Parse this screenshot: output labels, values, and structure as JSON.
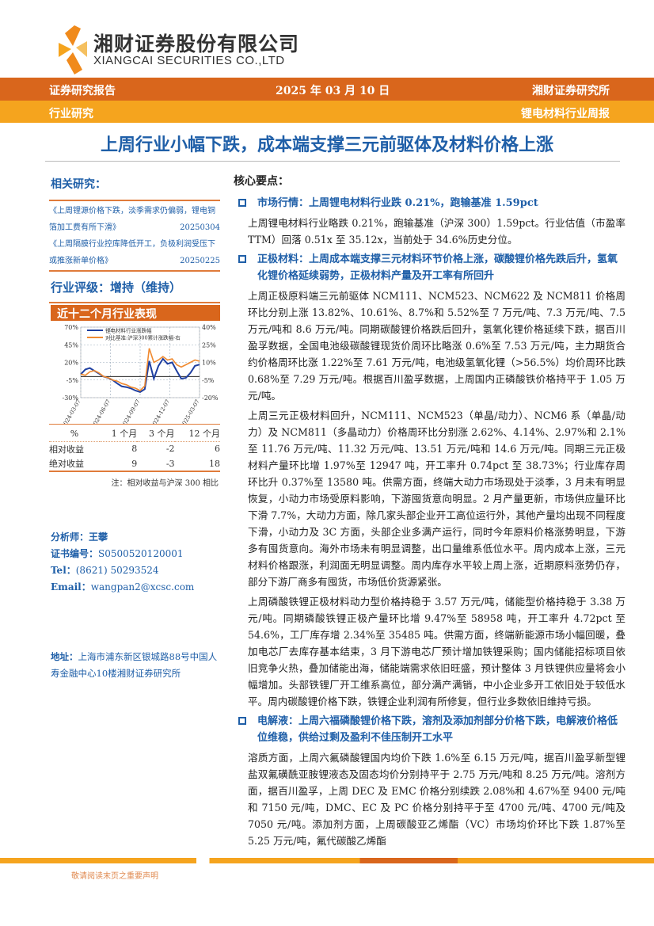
{
  "header": {
    "company_cn": "湘财证券股份有限公司",
    "company_en": "XIANGCAI SECURITIES CO.,LTD",
    "report_type": "证券研究报告",
    "date": "2025 年 03 月 10 日",
    "institute": "湘财证券研究所",
    "category": "行业研究",
    "series": "锂电材料行业周报"
  },
  "title": "上周行业小幅下跌，成本端支撑三元前驱体及材料价格上涨",
  "sidebar": {
    "related_title": "相关研究：",
    "related": [
      {
        "text": "《上周锂源价格下跌，淡季需求仍偏弱，锂电铜箔加工费有所下滑》",
        "date": "20250304"
      },
      {
        "text": "《上周隔膜行业控库降低开工，负极利润受压下或推涨新单价格》",
        "date": "20250225"
      }
    ],
    "rating": "行业评级：增持（维持）",
    "chart_title": "近十二个月行业表现",
    "perf_table": {
      "headers": [
        "%",
        "1 个月",
        "3 个月",
        "12 个月"
      ],
      "rows": [
        [
          "相对收益",
          "8",
          "-2",
          "6"
        ],
        [
          "绝对收益",
          "9",
          "-3",
          "18"
        ]
      ],
      "note": "注：相对收益与沪深 300 相比"
    },
    "analyst": {
      "name_label": "分析师：",
      "name": "王攀",
      "cert_label": "证书编号：",
      "cert": "S0500520120001",
      "tel_label": "Tel：",
      "tel": "(8621) 50293524",
      "email_label": "Email：",
      "email": "wangpan2@xcsc.com"
    },
    "address_label": "地址：",
    "address": "上海市浦东新区银城路88号中国人寿金融中心10楼湘财证券研究所"
  },
  "chart_data": {
    "type": "line",
    "title": "近十二个月行业表现",
    "x_ticks": [
      "2024-03-07",
      "2024-06-07",
      "2024-09-07",
      "2024-12-07",
      "2025-03-07"
    ],
    "left_ticks": [
      "70%",
      "45%",
      "20%",
      "-5%",
      "-30%"
    ],
    "ylim_left": [
      -30,
      70
    ],
    "right_ticks": [
      "40%",
      "25%",
      "10%",
      "-5%",
      "-20%"
    ],
    "ylim_right": [
      -20,
      40
    ],
    "grid": true,
    "legend": "top",
    "x": [
      "2024-03-07",
      "2024-03-21",
      "2024-04-04",
      "2024-04-18",
      "2024-05-02",
      "2024-05-16",
      "2024-05-30",
      "2024-06-13",
      "2024-06-27",
      "2024-07-11",
      "2024-07-25",
      "2024-08-08",
      "2024-08-22",
      "2024-09-05",
      "2024-09-19",
      "2024-10-03",
      "2024-10-17",
      "2024-10-31",
      "2024-11-14",
      "2024-11-28",
      "2024-12-12",
      "2024-12-26",
      "2025-01-09",
      "2025-01-23",
      "2025-02-06",
      "2025-02-20",
      "2025-03-06"
    ],
    "series": [
      {
        "name": "锂电材料行业涨跌幅",
        "axis": "left",
        "color": "#1f3fa0",
        "values": [
          3,
          10,
          12,
          8,
          4,
          0,
          -2,
          -5,
          -10,
          -14,
          -15,
          -17,
          -20,
          -22,
          -18,
          22,
          -3,
          15,
          25,
          18,
          20,
          8,
          -3,
          -2,
          5,
          15,
          17
        ]
      },
      {
        "name": "对比基准:沪深300累计涨跌幅-右",
        "axis": "right",
        "color": "#f08a30",
        "values": [
          0,
          -1,
          2,
          3,
          1,
          -2,
          -3,
          -5,
          -6,
          -8,
          -9,
          -11,
          -12,
          -14,
          -10,
          22,
          10,
          12,
          15,
          12,
          13,
          8,
          6,
          8,
          10,
          12,
          11
        ]
      }
    ]
  },
  "main": {
    "core_title": "核心要点：",
    "sections": [
      {
        "heading": "市场行情：上周锂电材料行业跌 0.21%，跑输基准 1.59pct",
        "paras": [
          "上周锂电材料行业略跌 0.21%，跑输基准（沪深 300）1.59pct。行业估值（市盈率 TTM）回落 0.51x 至 35.12x，当前处于 34.6%历史分位。"
        ]
      },
      {
        "heading": "正极材料：上周成本端支撑三元材料环节价格上涨，碳酸锂价格先跌后升，氢氧化锂价格延续弱势，正极材料产量及开工率有所回升",
        "paras": [
          "上周正极原料端三元前驱体 NCM111、NCM523、NCM622 及 NCM811 价格周环比分别上涨 13.82%、10.61%、8.7%和 5.52%至 7 万元/吨、7.3 万元/吨、7.5 万元/吨和 8.6 万元/吨。同期碳酸锂价格跌后回升，氢氧化锂价格延续下跌，据百川盈孚数据，全国电池级碳酸锂现货价周环比略涨 0.6%至 7.53 万元/吨，主力期货合约价格周环比涨 1.22%至 7.61 万元/吨，电池级氢氧化锂（>56.5%）均价周环比跌 0.68%至 7.29 万元/吨。根据百川盈孚数据，上周国内正磷酸铁价格持平于 1.05 万元/吨。",
          "上周三元正极材料回升，NCM111、NCM523（单晶/动力）、NCM6 系（单晶/动力）及 NCM811（多晶动力）价格周环比分别涨 2.62%、4.14%、2.97%和 2.1%至 11.76 万元/吨、11.32 万元/吨、13.51 万元/吨和 14.6 万元/吨。同期三元正极材料产量环比增 1.97%至 12947 吨，开工率升 0.74pct 至 38.73%；行业库存周环比升 0.37%至 13580 吨。供需方面，终端大动力市场现处于淡季，3 月未有明显恢复，小动力市场受原料影响，下游囤货意向明显。2 月产量更新，市场供应量环比下滑 7.7%，大动力方面，除几家头部企业开工高位运行外，其他产量均出现不同程度下滑，小动力及 3C 方面，头部企业多满产运行，同时今年原料价格涨势明显，下游多有囤货意向。海外市场未有明显调整，出口量维系低位水平。周内成本上涨，三元材料价格跟涨，利润面无明显调整。周内库存水平较上周上涨，近期原料涨势仍存，部分下游厂商多有囤货，市场低价货源紧张。",
          "上周磷酸铁锂正极材料动力型价格持稳于 3.57 万元/吨，储能型价格持稳于 3.38 万元/吨。同期磷酸铁锂正极产量环比增 9.47%至 58958 吨，开工率升 4.72pct 至 54.6%，工厂库存增 2.34%至 35485 吨。供需方面，终端新能源市场小幅回暖，叠加电芯厂去库存基本结束，3 月下游电芯厂预计增加铁锂采购；国内储能招标项目依旧竞争火热，叠加储能出海，储能端需求依旧旺盛，预计整体 3 月铁锂供应量将会小幅增加。头部铁锂厂开工维系高位，部分满产满销，中小企业多开工依旧处于较低水平。周内碳酸锂价格下跌，铁锂企业利润有所修复，但行业多数依旧维持亏损。"
        ]
      },
      {
        "heading": "电解液：上周六福磷酸锂价格下跌，溶剂及添加剂部分价格下跌，电解液价格低位维稳，供给过剩及盈利不佳压制开工水平",
        "paras": [
          "溶质方面，上周六氟磷酸锂国内均价下跌 1.6%至 6.15 万元/吨，据百川盈孚新型锂盐双氟磺酰亚胺锂液态及固态均价分别持平于 2.75 万元/吨和 8.25 万元/吨。溶剂方面，据百川盈孚，上周 DEC 及 EMC 价格分别续跌 2.08%和 4.67%至 9400 元/吨和 7150 元/吨，DMC、EC 及 PC 价格分别持平于至 4700 元/吨、4700 元/吨及 7050 元/吨。添加剂方面，上周碳酸亚乙烯酯（VC）市场均价环比下跌 1.87%至 5.25 万元/吨，氟代碳酸乙烯酯"
        ]
      }
    ]
  },
  "footer": {
    "disclaimer": "敬请阅读末页之重要声明"
  }
}
